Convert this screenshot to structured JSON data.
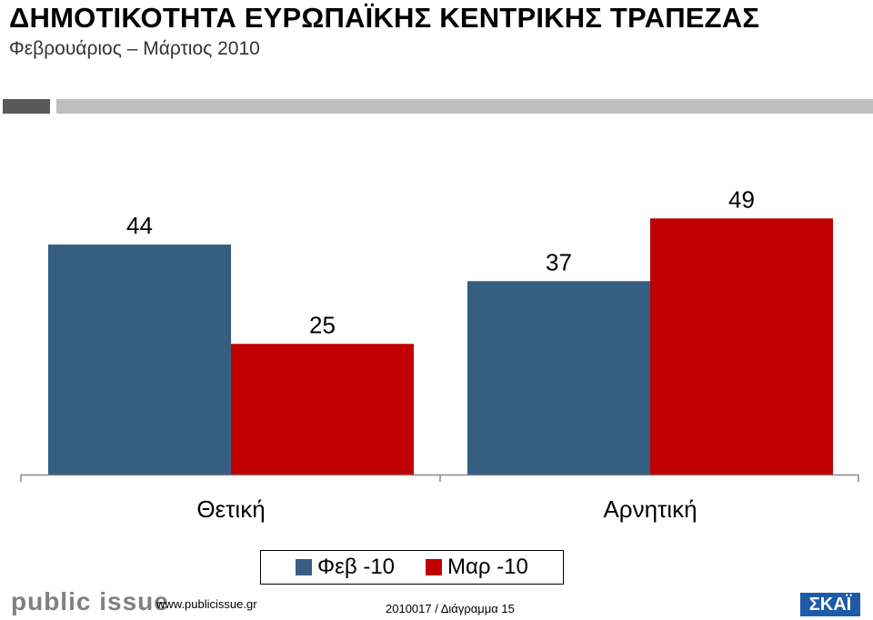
{
  "header": {
    "title": "ΔΗΜΟΤΙΚΟΤΗΤΑ ΕΥΡΩΠΑΪΚΗΣ ΚΕΝΤΡΙΚΗΣ ΤΡΑΠΕΖΑΣ",
    "subtitle": "Φεβρουάριος – Μάρτιος 2010"
  },
  "chart_data": {
    "type": "bar",
    "categories": [
      "Θετική",
      "Αρνητική"
    ],
    "series": [
      {
        "name": "Φεβ -10",
        "values": [
          44,
          37
        ],
        "color": "#365e80"
      },
      {
        "name": "Μαρ -10",
        "values": [
          25,
          49
        ],
        "color": "#c00000"
      }
    ],
    "ylim": [
      0,
      60
    ],
    "grid": false,
    "legend_position": "bottom"
  },
  "footer": {
    "logo": "public issue",
    "url": "www.publicissue.gr",
    "code": "2010017 / Διάγραμμα 15",
    "skai_logo": "ΣΚΑΪ"
  }
}
